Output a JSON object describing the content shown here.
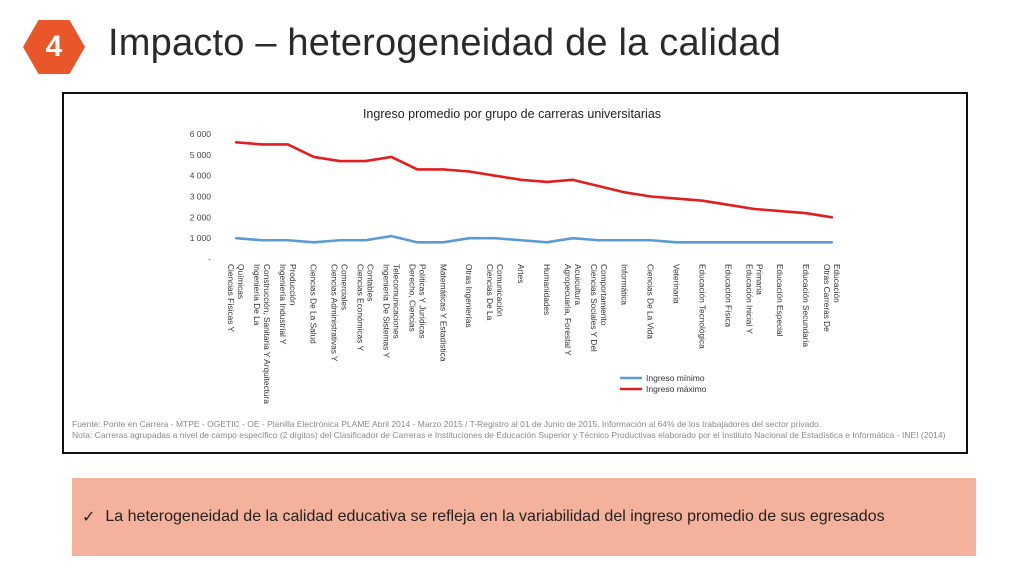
{
  "slide": {
    "number": "4",
    "title": "Impacto – heterogeneidad de la calidad",
    "bullet": "La heterogeneidad de la calidad educativa se refleja en la variabilidad del ingreso promedio de sus egresados",
    "bullet_icon": "check-icon"
  },
  "chart_data": {
    "type": "line",
    "title": "Ingreso promedio por grupo de carreras universitarias",
    "xlabel": "",
    "ylabel": "",
    "ylim": [
      0,
      6000
    ],
    "yticks": [
      0,
      1000,
      2000,
      3000,
      4000,
      5000,
      6000
    ],
    "ytick_labels": [
      "-",
      "1 000",
      "2 000",
      "3 000",
      "4 000",
      "5 000",
      "6 000"
    ],
    "grid": false,
    "legend_position": "bottom-right",
    "categories": [
      "Ciencias Físicas Y Químicas",
      "Ingeniería De La Construcción, Sanitaria Y Arquitectura",
      "Ingeniería Industrial Y Producción",
      "Ciencias De La Salud",
      "Ciencias Administrativas Y Comerciales",
      "Ciencias Económicas Y Contables",
      "Ingeniería De Sistemas Y Telecomunicaciones",
      "Derecho, Ciencias Políticas Y Jurídicas",
      "Matemáticas Y Estadística",
      "Otras Ingenierías",
      "Ciencias De La Comunicación",
      "Artes",
      "Humanidades",
      "Agropecuaria, Forestal Y Acuicultura",
      "Ciencias Sociales Y Del Comportamiento",
      "Informática",
      "Ciencias De La Vida",
      "Veterinaria",
      "Educación Tecnológica",
      "Educación Física",
      "Educación Inicial Y Primaria",
      "Educación Especial",
      "Educación Secundaria",
      "Otras Carreras De Educación"
    ],
    "series": [
      {
        "name": "Ingreso mínimo",
        "color": "#5b9bd5",
        "values": [
          1000,
          900,
          900,
          800,
          900,
          900,
          1100,
          800,
          800,
          1000,
          1000,
          900,
          800,
          1000,
          900,
          900,
          900,
          800,
          800,
          800,
          800,
          800,
          800,
          800
        ]
      },
      {
        "name": "Ingreso máximo",
        "color": "#e02020",
        "values": [
          5600,
          5500,
          5500,
          4900,
          4700,
          4700,
          4900,
          4300,
          4300,
          4200,
          4000,
          3800,
          3700,
          3800,
          3500,
          3200,
          3000,
          2900,
          2800,
          2600,
          2400,
          2300,
          2200,
          2000
        ]
      }
    ],
    "source_note": "Fuente: Ponte en Carrera - MTPE - OGETIC - OE - Planilla Electrónica PLAME Abril 2014 - Marzo 2015 / T-Registro al 01 de Junio de 2015. Información al 64% de los trabajadores del sector privado.",
    "note": "Nota: Carreras agrupadas a nivel de campo específico (2 dígitos) del Clasificador de Carreras e Instituciones de Educación Superior y Técnico Productivas elaborado por el Instituto Nacional de Estadística e Informática - INEI (2014)"
  }
}
